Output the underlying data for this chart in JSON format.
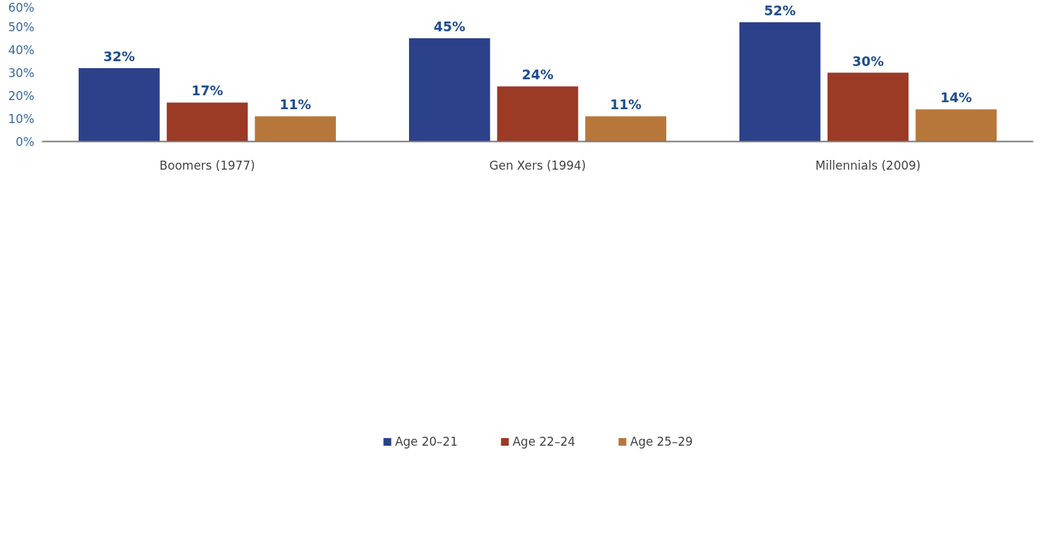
{
  "chart_data": {
    "type": "bar",
    "categories": [
      "Boomers (1977)",
      "Gen Xers (1994)",
      "Millennials (2009)"
    ],
    "series": [
      {
        "name": "Age 20–21",
        "color": "#2b4189",
        "values": [
          32,
          45,
          52
        ],
        "value_labels": [
          "32%",
          "45%",
          "52%"
        ]
      },
      {
        "name": "Age 22–24",
        "color": "#9b3a25",
        "values": [
          17,
          24,
          30
        ],
        "value_labels": [
          "17%",
          "24%",
          "30%"
        ]
      },
      {
        "name": "Age 25–29",
        "color": "#b8773a",
        "values": [
          11,
          11,
          14
        ],
        "value_labels": [
          "11%",
          "11%",
          "14%"
        ]
      }
    ],
    "ylim": [
      0,
      60
    ],
    "yticks": [
      {
        "value": 0,
        "label": "0%"
      },
      {
        "value": 10,
        "label": "10%"
      },
      {
        "value": 20,
        "label": "20%"
      },
      {
        "value": 30,
        "label": "30%"
      },
      {
        "value": 40,
        "label": "40%"
      },
      {
        "value": 50,
        "label": "50%"
      },
      {
        "value": 60,
        "label": "60%"
      }
    ],
    "grid": false,
    "legend": "bottom"
  }
}
